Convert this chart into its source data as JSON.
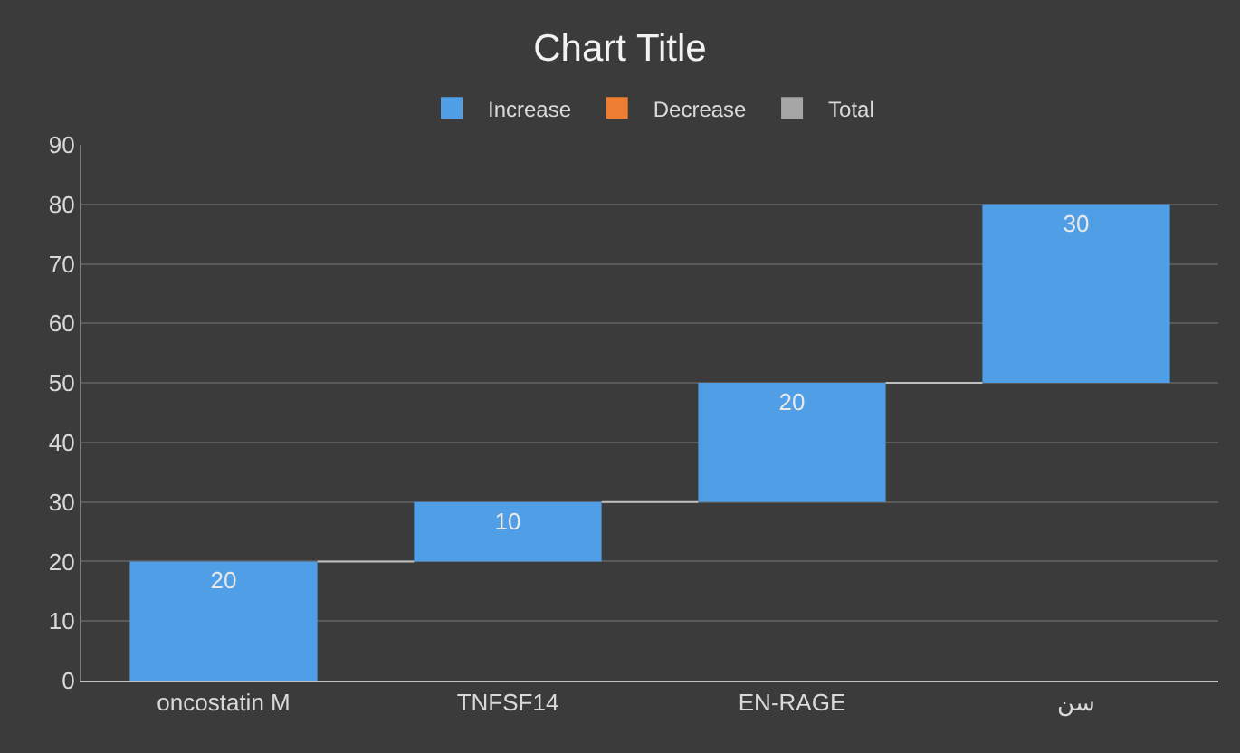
{
  "chart_data": {
    "type": "bar",
    "title": "Chart Title",
    "categories": [
      "oncostatin M",
      "TNFSF14",
      "EN-RAGE",
      "سن"
    ],
    "series": [
      {
        "name": "Increase",
        "color": "#4f9ee6",
        "values": [
          20,
          10,
          20,
          30
        ],
        "base": [
          0,
          20,
          30,
          50
        ]
      },
      {
        "name": "Decrease",
        "color": "#ed7d31",
        "values": [
          null,
          null,
          null,
          null
        ]
      },
      {
        "name": "Total",
        "color": "#a5a5a5",
        "values": [
          null,
          null,
          null,
          null
        ]
      }
    ],
    "ylim": [
      0,
      90
    ],
    "yticks": [
      0,
      10,
      20,
      30,
      40,
      50,
      60,
      70,
      80,
      90
    ],
    "grid": "y",
    "legend": "top",
    "data_labels": true
  }
}
